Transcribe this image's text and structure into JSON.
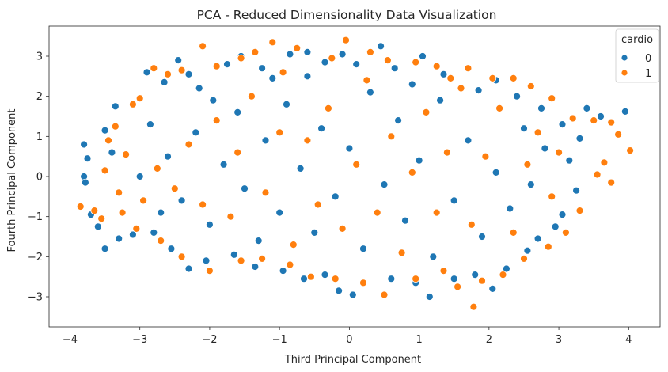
{
  "chart_data": {
    "type": "scatter",
    "title": "PCA - Reduced Dimensionality Data Visualization",
    "xlabel": "Third Principal Component",
    "ylabel": "Fourth Principal Component",
    "xlim": [
      -4.3,
      4.45
    ],
    "ylim": [
      -3.75,
      3.75
    ],
    "xticks": [
      -4,
      -3,
      -2,
      -1,
      0,
      1,
      2,
      3,
      4
    ],
    "yticks": [
      -3,
      -2,
      -1,
      0,
      1,
      2,
      3
    ],
    "grid": false,
    "legend": {
      "title": "cardio",
      "placement": "top-right",
      "entries": [
        "0",
        "1"
      ]
    },
    "series": [
      {
        "name": "0",
        "color": "#1f77b4",
        "points": [
          [
            -3.8,
            0.8
          ],
          [
            -3.75,
            0.45
          ],
          [
            -3.8,
            0.0
          ],
          [
            -3.78,
            -0.15
          ],
          [
            -3.7,
            -0.95
          ],
          [
            -3.6,
            -1.25
          ],
          [
            -3.5,
            -1.8
          ],
          [
            -3.35,
            1.75
          ],
          [
            -3.5,
            1.15
          ],
          [
            -3.4,
            0.6
          ],
          [
            -3.3,
            -1.55
          ],
          [
            -3.1,
            -1.45
          ],
          [
            -2.9,
            2.6
          ],
          [
            -2.85,
            1.3
          ],
          [
            -2.65,
            2.35
          ],
          [
            -2.45,
            2.9
          ],
          [
            -2.3,
            2.55
          ],
          [
            -2.15,
            2.2
          ],
          [
            -1.95,
            1.9
          ],
          [
            -1.75,
            2.8
          ],
          [
            -1.55,
            3.0
          ],
          [
            -1.25,
            2.7
          ],
          [
            -1.1,
            2.45
          ],
          [
            -0.85,
            3.05
          ],
          [
            -0.6,
            3.1
          ],
          [
            -0.35,
            2.85
          ],
          [
            -0.1,
            3.05
          ],
          [
            0.1,
            2.8
          ],
          [
            0.45,
            3.25
          ],
          [
            0.65,
            2.7
          ],
          [
            1.05,
            3.0
          ],
          [
            1.35,
            2.55
          ],
          [
            1.85,
            2.15
          ],
          [
            2.1,
            2.4
          ],
          [
            2.4,
            2.0
          ],
          [
            2.75,
            1.7
          ],
          [
            3.05,
            1.3
          ],
          [
            3.4,
            1.7
          ],
          [
            3.6,
            1.5
          ],
          [
            3.95,
            1.62
          ],
          [
            3.3,
            0.95
          ],
          [
            3.15,
            0.4
          ],
          [
            3.25,
            -0.35
          ],
          [
            3.05,
            -0.95
          ],
          [
            2.95,
            -1.25
          ],
          [
            2.7,
            -1.55
          ],
          [
            2.55,
            -1.85
          ],
          [
            2.25,
            -2.3
          ],
          [
            2.05,
            -2.8
          ],
          [
            1.8,
            -2.45
          ],
          [
            1.5,
            -2.55
          ],
          [
            1.15,
            -3.0
          ],
          [
            0.95,
            -2.65
          ],
          [
            0.6,
            -2.55
          ],
          [
            0.05,
            -2.95
          ],
          [
            -0.15,
            -2.85
          ],
          [
            -0.35,
            -2.45
          ],
          [
            -0.65,
            -2.55
          ],
          [
            -0.95,
            -2.35
          ],
          [
            -1.35,
            -2.25
          ],
          [
            -1.65,
            -1.95
          ],
          [
            -2.05,
            -2.1
          ],
          [
            -2.3,
            -2.3
          ],
          [
            -2.55,
            -1.8
          ],
          [
            -2.8,
            -1.4
          ],
          [
            -2.6,
            0.5
          ],
          [
            -2.4,
            -0.6
          ],
          [
            -2.2,
            1.1
          ],
          [
            -2.0,
            -1.2
          ],
          [
            -1.8,
            0.3
          ],
          [
            -1.6,
            1.6
          ],
          [
            -1.5,
            -0.3
          ],
          [
            -1.3,
            -1.6
          ],
          [
            -1.2,
            0.9
          ],
          [
            -1.0,
            -0.9
          ],
          [
            -0.9,
            1.8
          ],
          [
            -0.7,
            0.2
          ],
          [
            -0.5,
            -1.4
          ],
          [
            -0.4,
            1.2
          ],
          [
            -0.2,
            -0.5
          ],
          [
            0.0,
            0.7
          ],
          [
            0.2,
            -1.8
          ],
          [
            0.3,
            2.1
          ],
          [
            0.5,
            -0.2
          ],
          [
            0.7,
            1.4
          ],
          [
            0.8,
            -1.1
          ],
          [
            1.0,
            0.4
          ],
          [
            1.2,
            -2.0
          ],
          [
            1.3,
            1.9
          ],
          [
            1.5,
            -0.6
          ],
          [
            1.7,
            0.9
          ],
          [
            1.9,
            -1.5
          ],
          [
            2.1,
            0.1
          ],
          [
            2.3,
            -0.8
          ],
          [
            2.5,
            1.2
          ],
          [
            2.6,
            -0.2
          ],
          [
            2.8,
            0.7
          ],
          [
            -3.0,
            0.0
          ],
          [
            -2.7,
            -0.9
          ],
          [
            -0.6,
            2.5
          ],
          [
            0.9,
            2.3
          ]
        ]
      },
      {
        "name": "1",
        "color": "#ff7f0e",
        "points": [
          [
            -3.85,
            -0.75
          ],
          [
            -3.65,
            -0.85
          ],
          [
            -3.55,
            -1.05
          ],
          [
            -3.45,
            0.9
          ],
          [
            -3.35,
            1.25
          ],
          [
            -3.2,
            0.55
          ],
          [
            -3.1,
            1.8
          ],
          [
            -3.0,
            1.95
          ],
          [
            -2.8,
            2.7
          ],
          [
            -2.6,
            2.55
          ],
          [
            -2.4,
            2.65
          ],
          [
            -2.1,
            3.25
          ],
          [
            -1.9,
            2.75
          ],
          [
            -1.55,
            2.95
          ],
          [
            -1.35,
            3.1
          ],
          [
            -1.1,
            3.35
          ],
          [
            -0.75,
            3.2
          ],
          [
            -0.25,
            2.95
          ],
          [
            -0.05,
            3.4
          ],
          [
            0.3,
            3.1
          ],
          [
            0.55,
            2.9
          ],
          [
            0.95,
            2.85
          ],
          [
            1.25,
            2.75
          ],
          [
            1.7,
            2.7
          ],
          [
            2.05,
            2.45
          ],
          [
            2.35,
            2.45
          ],
          [
            2.6,
            2.25
          ],
          [
            2.9,
            1.95
          ],
          [
            3.2,
            1.45
          ],
          [
            3.5,
            1.4
          ],
          [
            3.75,
            1.35
          ],
          [
            3.85,
            1.05
          ],
          [
            4.02,
            0.65
          ],
          [
            3.65,
            0.35
          ],
          [
            3.55,
            0.05
          ],
          [
            3.75,
            -0.15
          ],
          [
            3.3,
            -0.85
          ],
          [
            3.1,
            -1.4
          ],
          [
            2.85,
            -1.75
          ],
          [
            2.5,
            -2.05
          ],
          [
            2.2,
            -2.45
          ],
          [
            1.9,
            -2.6
          ],
          [
            1.78,
            -3.25
          ],
          [
            1.55,
            -2.75
          ],
          [
            1.35,
            -2.35
          ],
          [
            0.95,
            -2.55
          ],
          [
            0.2,
            -2.65
          ],
          [
            0.5,
            -2.95
          ],
          [
            -0.2,
            -2.55
          ],
          [
            -0.55,
            -2.5
          ],
          [
            -0.85,
            -2.2
          ],
          [
            -1.25,
            -2.05
          ],
          [
            -1.55,
            -2.1
          ],
          [
            -2.0,
            -2.35
          ],
          [
            -2.4,
            -2.0
          ],
          [
            -2.7,
            -1.6
          ],
          [
            -3.05,
            -1.3
          ],
          [
            -3.25,
            -0.9
          ],
          [
            -3.5,
            0.15
          ],
          [
            -3.3,
            -0.4
          ],
          [
            -2.75,
            0.2
          ],
          [
            -2.5,
            -0.3
          ],
          [
            -2.3,
            0.8
          ],
          [
            -2.1,
            -0.7
          ],
          [
            -1.9,
            1.4
          ],
          [
            -1.7,
            -1.0
          ],
          [
            -1.6,
            0.6
          ],
          [
            -1.4,
            2.0
          ],
          [
            -1.2,
            -0.4
          ],
          [
            -1.0,
            1.1
          ],
          [
            -0.8,
            -1.7
          ],
          [
            -0.6,
            0.9
          ],
          [
            -0.45,
            -0.7
          ],
          [
            -0.3,
            1.7
          ],
          [
            -0.1,
            -1.3
          ],
          [
            0.1,
            0.3
          ],
          [
            0.25,
            2.4
          ],
          [
            0.4,
            -0.9
          ],
          [
            0.6,
            1.0
          ],
          [
            0.75,
            -1.9
          ],
          [
            0.9,
            0.1
          ],
          [
            1.1,
            1.6
          ],
          [
            1.25,
            -0.9
          ],
          [
            1.4,
            0.6
          ],
          [
            1.6,
            2.2
          ],
          [
            1.75,
            -1.2
          ],
          [
            1.95,
            0.5
          ],
          [
            2.15,
            1.7
          ],
          [
            2.35,
            -1.4
          ],
          [
            2.55,
            0.3
          ],
          [
            2.7,
            1.1
          ],
          [
            2.9,
            -0.5
          ],
          [
            3.0,
            0.6
          ],
          [
            -2.95,
            -0.6
          ],
          [
            -0.95,
            2.6
          ],
          [
            1.45,
            2.45
          ]
        ]
      }
    ]
  }
}
